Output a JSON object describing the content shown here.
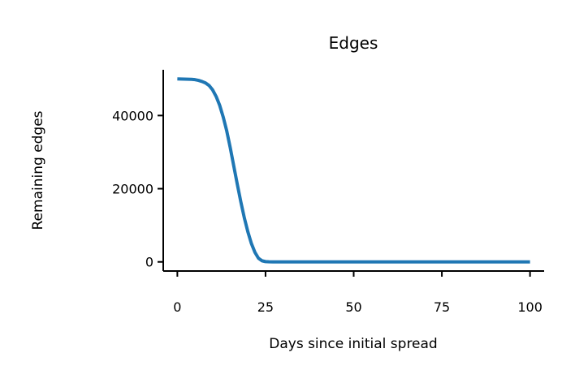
{
  "chart_data": {
    "type": "line",
    "title": "Edges",
    "xlabel": "Days since initial spread",
    "ylabel": "Remaining edges",
    "xlim": [
      -4,
      104
    ],
    "ylim": [
      -2500,
      52500
    ],
    "x_ticks": [
      0,
      25,
      50,
      75,
      100
    ],
    "x_tick_labels": [
      "0",
      "25",
      "50",
      "75",
      "100"
    ],
    "y_ticks": [
      0,
      20000,
      40000
    ],
    "y_tick_labels": [
      "0",
      "20000",
      "40000"
    ],
    "grid": false,
    "legend": "none",
    "series": [
      {
        "color": "#1f77b4",
        "x": [
          0,
          2,
          4,
          5,
          6,
          7,
          8,
          9,
          10,
          11,
          12,
          13,
          14,
          15,
          16,
          17,
          18,
          19,
          20,
          21,
          22,
          23,
          24,
          25,
          26,
          27,
          28,
          30,
          40,
          50,
          60,
          70,
          80,
          90,
          100
        ],
        "y": [
          50000,
          49950,
          49900,
          49800,
          49600,
          49300,
          48900,
          48200,
          47000,
          45200,
          42800,
          39600,
          35800,
          31200,
          26200,
          21200,
          16400,
          12000,
          8200,
          5000,
          2600,
          1000,
          300,
          80,
          20,
          5,
          0,
          0,
          0,
          0,
          0,
          0,
          0,
          0,
          0
        ]
      }
    ]
  }
}
